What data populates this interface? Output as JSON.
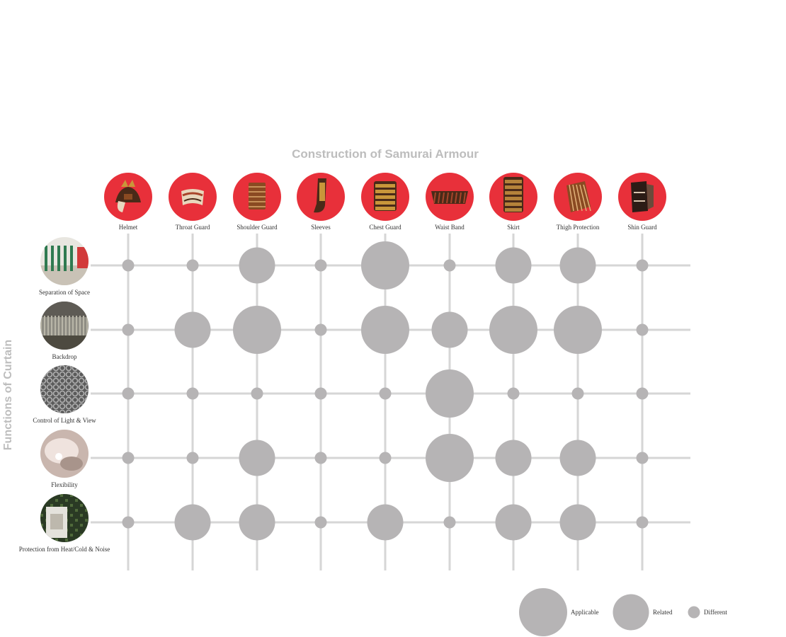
{
  "title": "Construction of Samurai Armour",
  "side_title": "Functions of Curtain",
  "columns": [
    {
      "label": "Helmet",
      "icon": "samurai-helmet-icon"
    },
    {
      "label": "Throat Guard",
      "icon": "throat-guard-icon"
    },
    {
      "label": "Shoulder Guard",
      "icon": "shoulder-guard-icon"
    },
    {
      "label": "Sleeves",
      "icon": "sleeves-icon"
    },
    {
      "label": "Chest Guard",
      "icon": "chest-guard-icon"
    },
    {
      "label": "Waist Band",
      "icon": "waist-band-icon"
    },
    {
      "label": "Skirt",
      "icon": "skirt-icon"
    },
    {
      "label": "Thigh Protection",
      "icon": "thigh-protection-icon"
    },
    {
      "label": "Shin Guard",
      "icon": "shin-guard-icon"
    }
  ],
  "rows": [
    {
      "label": "Separation of Space",
      "icon": "separation-of-space-photo"
    },
    {
      "label": "Backdrop",
      "icon": "backdrop-photo"
    },
    {
      "label": "Control of Light & View",
      "icon": "light-control-photo"
    },
    {
      "label": "Flexibility",
      "icon": "flexibility-photo"
    },
    {
      "label": "Protection from Heat/Cold & Noise",
      "icon": "protection-photo"
    }
  ],
  "matrix": [
    [
      "different",
      "different",
      "related",
      "different",
      "applicable",
      "different",
      "related",
      "related",
      "different"
    ],
    [
      "different",
      "related",
      "applicable",
      "different",
      "applicable",
      "related",
      "applicable",
      "applicable",
      "different"
    ],
    [
      "different",
      "different",
      "different",
      "different",
      "different",
      "applicable",
      "different",
      "different",
      "different"
    ],
    [
      "different",
      "different",
      "related",
      "different",
      "different",
      "applicable",
      "related",
      "related",
      "different"
    ],
    [
      "different",
      "related",
      "related",
      "different",
      "related",
      "different",
      "related",
      "related",
      "different"
    ]
  ],
  "legend": [
    {
      "key": "applicable",
      "label": "Applicable"
    },
    {
      "key": "related",
      "label": "Related"
    },
    {
      "key": "different",
      "label": "Different"
    }
  ],
  "colors": {
    "header_circle": "#e8303a",
    "bubble": "#b6b4b5",
    "grid": "#d6d6d6",
    "title": "#bdbdbd"
  }
}
